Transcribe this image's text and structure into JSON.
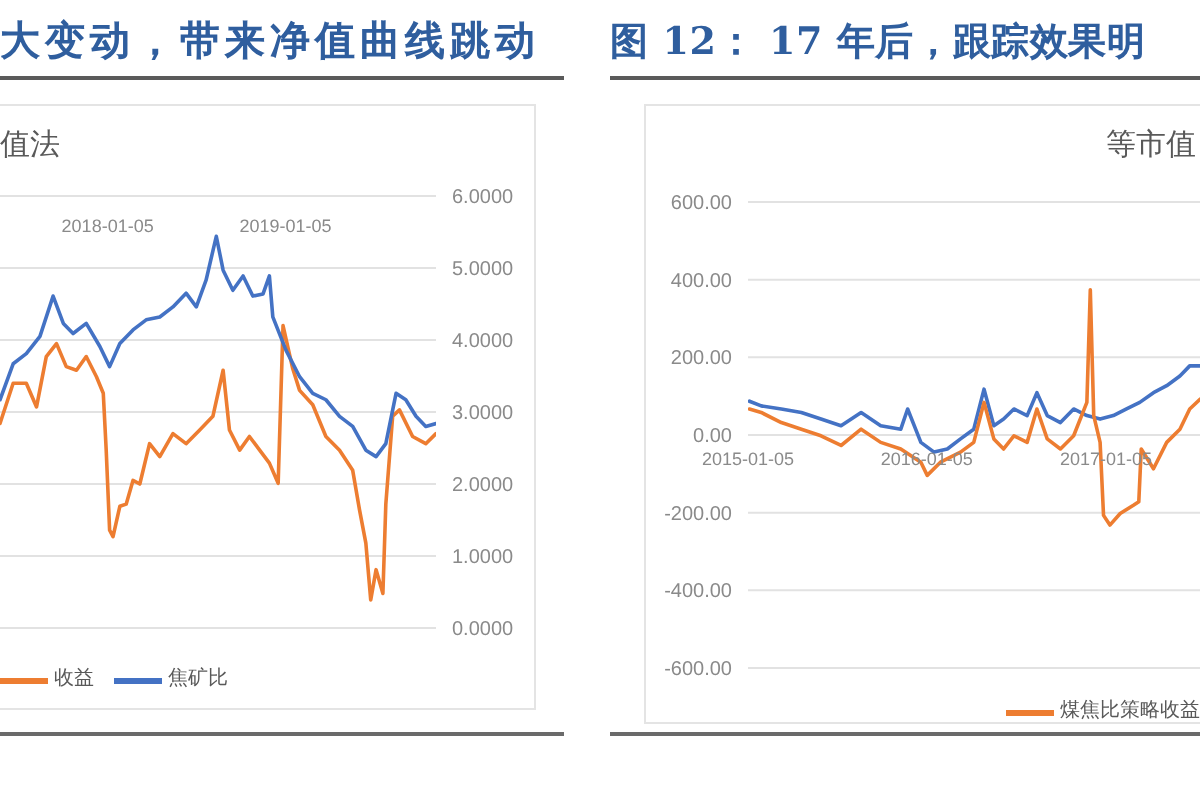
{
  "chart_data": [
    {
      "type": "line",
      "title": "大变动，带来净值曲线跳动",
      "subtitle": "值法",
      "xlim": [
        "2017-05-29",
        "2019-11-10"
      ],
      "xticks": [
        "2018-01-05",
        "2019-01-05"
      ],
      "ylim": [
        0,
        6
      ],
      "yticks": [
        {
          "value": 0,
          "label": "0.0000"
        },
        {
          "value": 1,
          "label": "1.0000"
        },
        {
          "value": 2,
          "label": "2.0000"
        },
        {
          "value": 3,
          "label": "3.0000"
        },
        {
          "value": 4,
          "label": "4.0000"
        },
        {
          "value": 5,
          "label": "5.0000"
        },
        {
          "value": 6,
          "label": "6.0000"
        }
      ],
      "grid": "y",
      "legend": "bottom",
      "series": [
        {
          "name": "收益",
          "color": "#ed7d31",
          "x": [
            "2017-05-29",
            "2017-06-25",
            "2017-07-22",
            "2017-08-12",
            "2017-09-01",
            "2017-09-22",
            "2017-10-12",
            "2017-11-02",
            "2017-11-22",
            "2017-12-13",
            "2017-12-27",
            "2018-01-02",
            "2018-01-09",
            "2018-01-16",
            "2018-01-30",
            "2018-02-12",
            "2018-02-26",
            "2018-03-12",
            "2018-04-01",
            "2018-04-22",
            "2018-05-19",
            "2018-06-15",
            "2018-07-13",
            "2018-08-09",
            "2018-08-30",
            "2018-09-12",
            "2018-10-03",
            "2018-10-23",
            "2018-11-13",
            "2018-12-03",
            "2018-12-21",
            "2018-12-31",
            "2019-01-20",
            "2019-02-03",
            "2019-03-02",
            "2019-03-29",
            "2019-04-26",
            "2019-05-23",
            "2019-06-06",
            "2019-06-19",
            "2019-06-29",
            "2019-07-10",
            "2019-07-24",
            "2019-07-30",
            "2019-08-13",
            "2019-08-27",
            "2019-09-23",
            "2019-10-20",
            "2019-11-10"
          ],
          "values": [
            2.84,
            3.4,
            3.4,
            3.07,
            3.77,
            3.95,
            3.63,
            3.58,
            3.77,
            3.49,
            3.26,
            2.47,
            1.36,
            1.27,
            1.69,
            1.72,
            2.05,
            2.0,
            2.56,
            2.38,
            2.7,
            2.56,
            2.75,
            2.94,
            3.58,
            2.75,
            2.47,
            2.66,
            2.47,
            2.29,
            2.01,
            4.2,
            3.6,
            3.3,
            3.1,
            2.66,
            2.47,
            2.19,
            1.64,
            1.18,
            0.39,
            0.81,
            0.48,
            1.72,
            2.94,
            3.03,
            2.66,
            2.56,
            2.7
          ]
        },
        {
          "name": "焦矿比",
          "color": "#4472c4",
          "x": [
            "2017-05-29",
            "2017-06-25",
            "2017-07-22",
            "2017-08-19",
            "2017-09-15",
            "2017-10-06",
            "2017-10-26",
            "2017-11-22",
            "2017-12-20",
            "2018-01-09",
            "2018-01-30",
            "2018-02-26",
            "2018-03-25",
            "2018-04-22",
            "2018-05-19",
            "2018-06-15",
            "2018-07-06",
            "2018-07-26",
            "2018-08-16",
            "2018-08-30",
            "2018-09-19",
            "2018-10-10",
            "2018-10-30",
            "2018-11-20",
            "2018-12-03",
            "2018-12-10",
            "2019-01-06",
            "2019-02-03",
            "2019-03-02",
            "2019-03-29",
            "2019-04-26",
            "2019-05-23",
            "2019-06-19",
            "2019-07-10",
            "2019-07-30",
            "2019-08-20",
            "2019-09-09",
            "2019-09-30",
            "2019-10-20",
            "2019-11-10"
          ],
          "values": [
            3.17,
            3.67,
            3.81,
            4.05,
            4.61,
            4.23,
            4.09,
            4.23,
            3.91,
            3.63,
            3.95,
            4.14,
            4.28,
            4.32,
            4.46,
            4.65,
            4.46,
            4.83,
            5.44,
            4.97,
            4.69,
            4.89,
            4.61,
            4.64,
            4.89,
            4.32,
            3.86,
            3.49,
            3.26,
            3.17,
            2.94,
            2.8,
            2.47,
            2.38,
            2.56,
            3.26,
            3.17,
            2.94,
            2.8,
            2.84
          ]
        }
      ]
    },
    {
      "type": "line",
      "title": "图 12： 17 年后，跟踪效果明",
      "subtitle": "等市值",
      "xlim": [
        "2015-01-05",
        "2017-07-16"
      ],
      "xticks": [
        "2015-01-05",
        "2016-01-05",
        "2017-01-05"
      ],
      "ylim": [
        -600,
        600
      ],
      "yticks": [
        {
          "value": -600,
          "label": "-600.00"
        },
        {
          "value": -400,
          "label": "-400.00"
        },
        {
          "value": -200,
          "label": "-200.00"
        },
        {
          "value": 0,
          "label": "0.00"
        },
        {
          "value": 200,
          "label": "200.00"
        },
        {
          "value": 400,
          "label": "400.00"
        },
        {
          "value": 600,
          "label": "600.00"
        }
      ],
      "grid": "y",
      "legend": "bottom",
      "series": [
        {
          "color": "#4472c4",
          "x": [
            "2015-01-08",
            "2015-02-01",
            "2015-03-14",
            "2015-04-24",
            "2015-06-03",
            "2015-07-14",
            "2015-08-24",
            "2015-10-03",
            "2015-11-13",
            "2015-11-27",
            "2015-12-24",
            "2016-01-20",
            "2016-02-16",
            "2016-03-14",
            "2016-04-10",
            "2016-05-01",
            "2016-05-21",
            "2016-06-10",
            "2016-07-01",
            "2016-07-28",
            "2016-08-17",
            "2016-09-07",
            "2016-10-04",
            "2016-10-31",
            "2016-11-27",
            "2016-12-24",
            "2017-01-20",
            "2017-02-16",
            "2017-03-15",
            "2017-04-12",
            "2017-05-09",
            "2017-06-05",
            "2017-06-25",
            "2017-07-16"
          ],
          "values": [
            87,
            75,
            67,
            58,
            41,
            24,
            58,
            24,
            15,
            67,
            -19,
            -44,
            -36,
            -10,
            15,
            118,
            24,
            41,
            67,
            50,
            109,
            50,
            32,
            67,
            50,
            41,
            50,
            67,
            84,
            109,
            127,
            152,
            178,
            178
          ]
        },
        {
          "name": "煤焦比策略收益",
          "color": "#ed7d31",
          "x": [
            "2015-01-08",
            "2015-02-01",
            "2015-03-14",
            "2015-04-24",
            "2015-06-03",
            "2015-07-14",
            "2015-08-24",
            "2015-10-03",
            "2015-11-13",
            "2015-12-24",
            "2016-01-06",
            "2016-02-02",
            "2016-03-14",
            "2016-04-10",
            "2016-05-01",
            "2016-05-21",
            "2016-06-10",
            "2016-07-01",
            "2016-07-28",
            "2016-08-17",
            "2016-09-07",
            "2016-10-04",
            "2016-10-31",
            "2016-11-27",
            "2016-12-04",
            "2016-12-11",
            "2016-12-24",
            "2016-12-31",
            "2017-01-13",
            "2017-02-03",
            "2017-03-02",
            "2017-03-13",
            "2017-03-18",
            "2017-04-12",
            "2017-05-09",
            "2017-06-05",
            "2017-06-25",
            "2017-07-16"
          ],
          "values": [
            67,
            58,
            32,
            15,
            -2,
            -27,
            15,
            -19,
            -36,
            -70,
            -104,
            -70,
            -44,
            -19,
            84,
            -10,
            -36,
            -2,
            -19,
            67,
            -10,
            -36,
            -2,
            84,
            374,
            50,
            -19,
            -207,
            -232,
            -202,
            -181,
            -172,
            -36,
            -87,
            -19,
            15,
            67,
            92
          ]
        }
      ]
    }
  ]
}
